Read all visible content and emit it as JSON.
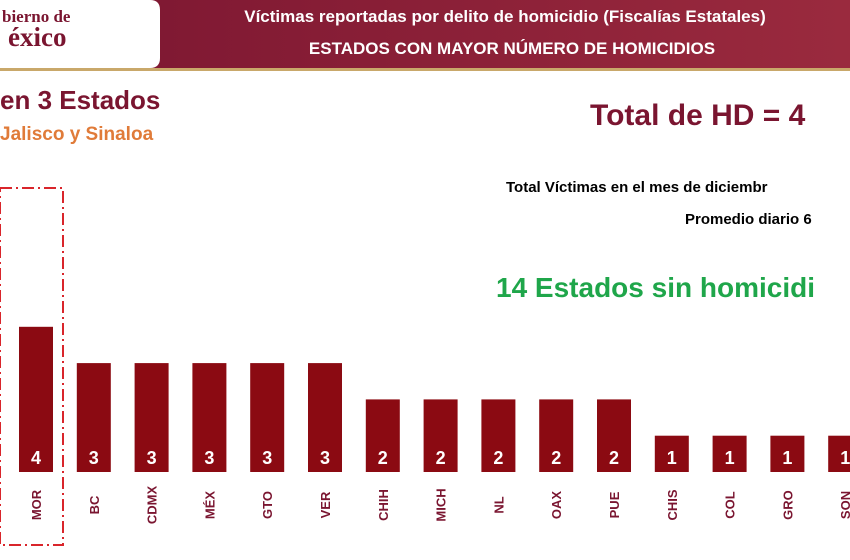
{
  "header": {
    "logo_top": "bierno de",
    "logo_bottom": "éxico",
    "title": "Víctimas reportadas por delito de homicidio (Fiscalías Estatales)",
    "subtitle": "ESTADOS CON MAYOR NÚMERO DE HOMICIDIOS"
  },
  "chart_data": {
    "type": "bar",
    "headline": "en 3 Estados",
    "subheadline": "Jalisco y Sinaloa",
    "annotations": [
      "Total de HD = 4",
      "Total Víctimas en el mes de diciembr",
      "Promedio diario 6",
      "14 Estados sin homicidi"
    ],
    "categories": [
      "MOR",
      "BC",
      "CDMX",
      "MÉX",
      "GTO",
      "VER",
      "CHIH",
      "MICH",
      "NL",
      "OAX",
      "PUE",
      "CHIS",
      "COL",
      "GRO",
      "SON"
    ],
    "values": [
      4,
      3,
      3,
      3,
      3,
      3,
      2,
      2,
      2,
      2,
      2,
      1,
      1,
      1,
      1
    ],
    "color": "#8b0a12"
  }
}
